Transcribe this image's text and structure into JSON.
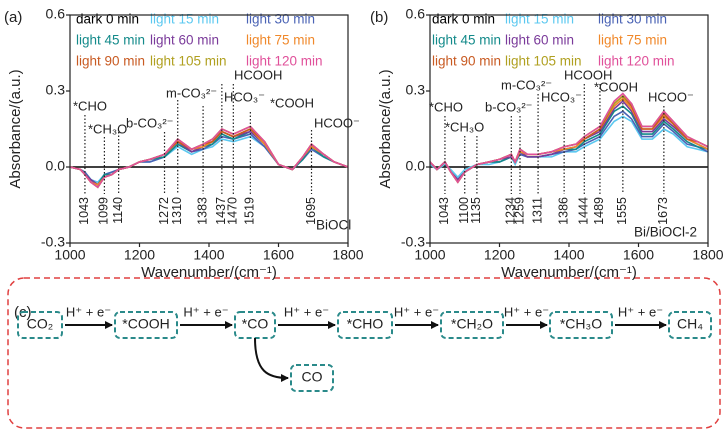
{
  "chart_data": [
    {
      "type": "line",
      "panel_label": "(a)",
      "sample": "BiOCl",
      "xlabel": "Wavenumber/(cm⁻¹)",
      "ylabel": "Absorbance/(a.u.)",
      "xlim": [
        1000,
        1800
      ],
      "xticks": [
        1000,
        1200,
        1400,
        1600,
        1800
      ],
      "ylim": [
        -0.3,
        0.6
      ],
      "yticks": [
        -0.3,
        {
          "value": 0,
          "label": "0.0"
        },
        0.3,
        0.6
      ],
      "x": [
        1000,
        1030,
        1043,
        1060,
        1080,
        1099,
        1120,
        1140,
        1170,
        1200,
        1230,
        1272,
        1310,
        1350,
        1383,
        1410,
        1437,
        1470,
        1519,
        1560,
        1600,
        1640,
        1670,
        1695,
        1730,
        1760,
        1800
      ],
      "series": [
        {
          "name": "dark 0 min",
          "color": "#000000",
          "values": [
            0,
            0,
            0,
            0,
            0,
            0,
            0,
            0,
            0,
            0,
            0,
            0,
            0,
            0,
            0,
            0,
            0,
            0,
            0,
            0,
            0,
            0,
            0,
            0,
            0,
            0,
            0
          ]
        },
        {
          "name": "light 15 min",
          "color": "#5bc8f0",
          "values": [
            0,
            -0.01,
            -0.02,
            -0.05,
            -0.06,
            -0.03,
            -0.02,
            -0.01,
            0,
            0.02,
            0.02,
            0.04,
            0.08,
            0.05,
            0.07,
            0.08,
            0.11,
            0.1,
            0.12,
            0.08,
            0.01,
            -0.01,
            0.03,
            0.07,
            0.04,
            0.02,
            0
          ]
        },
        {
          "name": "light 30 min",
          "color": "#4a63b5",
          "values": [
            0,
            -0.01,
            -0.02,
            -0.05,
            -0.07,
            -0.03,
            -0.02,
            -0.01,
            0,
            0.02,
            0.02,
            0.04,
            0.09,
            0.06,
            0.07,
            0.09,
            0.12,
            0.11,
            0.13,
            0.08,
            0.01,
            -0.01,
            0.03,
            0.07,
            0.04,
            0.02,
            0
          ]
        },
        {
          "name": "light 45 min",
          "color": "#138a8a",
          "values": [
            0,
            -0.01,
            -0.03,
            -0.05,
            -0.07,
            -0.03,
            -0.03,
            -0.01,
            0,
            0.02,
            0.03,
            0.04,
            0.09,
            0.06,
            0.08,
            0.09,
            0.13,
            0.11,
            0.14,
            0.09,
            0.01,
            -0.01,
            0.03,
            0.08,
            0.04,
            0.02,
            0
          ]
        },
        {
          "name": "light 60 min",
          "color": "#7a3a9a",
          "values": [
            0,
            -0.01,
            -0.03,
            -0.05,
            -0.07,
            -0.04,
            -0.03,
            -0.01,
            0,
            0.02,
            0.03,
            0.05,
            0.1,
            0.06,
            0.08,
            0.1,
            0.14,
            0.12,
            0.14,
            0.09,
            0.01,
            -0.01,
            0.04,
            0.08,
            0.05,
            0.02,
            0
          ]
        },
        {
          "name": "light 75 min",
          "color": "#f0882a",
          "values": [
            0,
            -0.01,
            -0.03,
            -0.06,
            -0.07,
            -0.04,
            -0.03,
            -0.01,
            0,
            0.02,
            0.03,
            0.05,
            0.1,
            0.07,
            0.08,
            0.1,
            0.14,
            0.12,
            0.15,
            0.09,
            0.01,
            -0.01,
            0.04,
            0.08,
            0.05,
            0.02,
            0
          ]
        },
        {
          "name": "light 90 min",
          "color": "#c85a22",
          "values": [
            0,
            -0.01,
            -0.03,
            -0.06,
            -0.08,
            -0.04,
            -0.03,
            -0.01,
            0,
            0.02,
            0.03,
            0.05,
            0.1,
            0.07,
            0.09,
            0.1,
            0.14,
            0.12,
            0.15,
            0.1,
            0.01,
            -0.01,
            0.04,
            0.09,
            0.05,
            0.02,
            0
          ]
        },
        {
          "name": "light 105 min",
          "color": "#b0a020",
          "values": [
            0,
            -0.01,
            -0.03,
            -0.06,
            -0.08,
            -0.04,
            -0.03,
            -0.01,
            0,
            0.02,
            0.03,
            0.05,
            0.11,
            0.07,
            0.09,
            0.11,
            0.15,
            0.13,
            0.16,
            0.1,
            0.01,
            -0.01,
            0.04,
            0.09,
            0.05,
            0.02,
            0
          ]
        },
        {
          "name": "light 120 min",
          "color": "#e0509a",
          "values": [
            0,
            -0.01,
            -0.03,
            -0.06,
            -0.08,
            -0.04,
            -0.03,
            -0.01,
            0,
            0.02,
            0.03,
            0.05,
            0.11,
            0.07,
            0.09,
            0.11,
            0.15,
            0.13,
            0.16,
            0.1,
            0.01,
            -0.01,
            0.04,
            0.09,
            0.05,
            0.02,
            0
          ]
        }
      ],
      "peaks": [
        1043,
        1099,
        1140,
        1272,
        1310,
        1383,
        1437,
        1470,
        1519,
        1695
      ],
      "annotations": [
        "*CHO",
        "*CH₃O",
        "b-CO₃²⁻",
        "m-CO₃²⁻",
        "HCO₃⁻",
        "HCOOH",
        "*COOH",
        "HCOO⁻"
      ]
    },
    {
      "type": "line",
      "panel_label": "(b)",
      "sample": "Bi/BiOCl-2",
      "xlabel": "Wavenumber/(cm⁻¹)",
      "ylabel": "Absorbance/(a.u.)",
      "xlim": [
        1000,
        1800
      ],
      "xticks": [
        1000,
        1200,
        1400,
        1600,
        1800
      ],
      "ylim": [
        -0.3,
        0.6
      ],
      "yticks": [
        -0.3,
        {
          "value": 0,
          "label": "0.0"
        },
        0.3,
        0.6
      ],
      "x": [
        1000,
        1020,
        1043,
        1060,
        1080,
        1100,
        1135,
        1170,
        1200,
        1234,
        1245,
        1259,
        1280,
        1311,
        1350,
        1386,
        1420,
        1444,
        1489,
        1530,
        1555,
        1580,
        1610,
        1640,
        1673,
        1700,
        1740,
        1770,
        1800
      ],
      "series": [
        {
          "name": "dark 0 min",
          "color": "#000000",
          "values": [
            0,
            0,
            0,
            0,
            0,
            0,
            0,
            0,
            0,
            0,
            0,
            0,
            0,
            0,
            0,
            0,
            0,
            0,
            0,
            0,
            0,
            0,
            0,
            0,
            0,
            0,
            0,
            0,
            0
          ]
        },
        {
          "name": "light 15 min",
          "color": "#5bc8f0",
          "values": [
            0.01,
            -0.01,
            0.01,
            -0.01,
            -0.04,
            -0.01,
            0.01,
            0.01,
            0.02,
            0.04,
            0.01,
            0.05,
            0.04,
            0.04,
            0.04,
            0.06,
            0.06,
            0.08,
            0.11,
            0.18,
            0.2,
            0.18,
            0.11,
            0.11,
            0.15,
            0.13,
            0.08,
            0.07,
            0.06
          ]
        },
        {
          "name": "light 30 min",
          "color": "#4a63b5",
          "values": [
            0.02,
            -0.01,
            0.02,
            -0.02,
            -0.05,
            -0.02,
            0.01,
            0.02,
            0.02,
            0.04,
            0.02,
            0.05,
            0.04,
            0.04,
            0.05,
            0.06,
            0.07,
            0.09,
            0.12,
            0.2,
            0.22,
            0.19,
            0.12,
            0.12,
            0.17,
            0.14,
            0.09,
            0.08,
            0.06
          ]
        },
        {
          "name": "light 45 min",
          "color": "#138a8a",
          "values": [
            0.02,
            -0.01,
            0.02,
            -0.02,
            -0.05,
            -0.02,
            0.01,
            0.02,
            0.02,
            0.04,
            0.02,
            0.06,
            0.04,
            0.04,
            0.05,
            0.07,
            0.07,
            0.1,
            0.13,
            0.22,
            0.24,
            0.21,
            0.13,
            0.13,
            0.18,
            0.15,
            0.1,
            0.08,
            0.07
          ]
        },
        {
          "name": "light 60 min",
          "color": "#7a3a9a",
          "values": [
            0.02,
            -0.01,
            0.02,
            -0.02,
            -0.05,
            -0.02,
            0.01,
            0.02,
            0.03,
            0.04,
            0.02,
            0.06,
            0.04,
            0.04,
            0.05,
            0.07,
            0.08,
            0.11,
            0.14,
            0.23,
            0.26,
            0.22,
            0.14,
            0.14,
            0.19,
            0.16,
            0.11,
            0.09,
            0.07
          ]
        },
        {
          "name": "light 75 min",
          "color": "#f0882a",
          "values": [
            0.02,
            -0.01,
            0.02,
            -0.02,
            -0.06,
            -0.02,
            0.01,
            0.02,
            0.03,
            0.05,
            0.02,
            0.06,
            0.05,
            0.05,
            0.06,
            0.07,
            0.08,
            0.11,
            0.15,
            0.24,
            0.27,
            0.23,
            0.15,
            0.15,
            0.2,
            0.17,
            0.11,
            0.09,
            0.07
          ]
        },
        {
          "name": "light 90 min",
          "color": "#c85a22",
          "values": [
            0.02,
            -0.01,
            0.02,
            -0.02,
            -0.06,
            -0.02,
            0.01,
            0.02,
            0.03,
            0.05,
            0.02,
            0.07,
            0.05,
            0.05,
            0.06,
            0.08,
            0.09,
            0.11,
            0.15,
            0.25,
            0.28,
            0.24,
            0.15,
            0.15,
            0.21,
            0.17,
            0.11,
            0.1,
            0.08
          ]
        },
        {
          "name": "light 105 min",
          "color": "#b0a020",
          "values": [
            0.02,
            -0.01,
            0.02,
            -0.02,
            -0.06,
            -0.02,
            0.01,
            0.02,
            0.03,
            0.05,
            0.02,
            0.07,
            0.05,
            0.05,
            0.06,
            0.08,
            0.09,
            0.12,
            0.16,
            0.25,
            0.28,
            0.25,
            0.16,
            0.16,
            0.22,
            0.18,
            0.12,
            0.1,
            0.08
          ]
        },
        {
          "name": "light 120 min",
          "color": "#e0509a",
          "values": [
            0.02,
            -0.01,
            0.02,
            -0.02,
            -0.06,
            -0.02,
            0.01,
            0.02,
            0.03,
            0.05,
            0.02,
            0.07,
            0.05,
            0.05,
            0.06,
            0.08,
            0.09,
            0.12,
            0.16,
            0.26,
            0.29,
            0.25,
            0.16,
            0.16,
            0.22,
            0.18,
            0.12,
            0.1,
            0.08
          ]
        }
      ],
      "peaks": [
        1043,
        1100,
        1135,
        1234,
        1259,
        1311,
        1386,
        1444,
        1489,
        1555,
        1673
      ],
      "annotations": [
        "*CHO",
        "*CH₃O",
        "b-CO₃²⁻",
        "m-CO₃²⁻",
        "HCO₃⁻",
        "HCOOH",
        "*COOH",
        "HCOO⁻"
      ]
    }
  ],
  "diagram": {
    "panel_label": "(c)",
    "nodes": [
      "CO₂",
      "*COOH",
      "*CO",
      "*CHO",
      "*CH₂O",
      "*CH₃O",
      "CH₄",
      "CO"
    ],
    "edges": [
      "H⁺ + e⁻",
      "H⁺ + e⁻",
      "H⁺ + e⁻",
      "H⁺ + e⁻",
      "H⁺ + e⁻",
      "H⁺ + e⁻"
    ]
  }
}
